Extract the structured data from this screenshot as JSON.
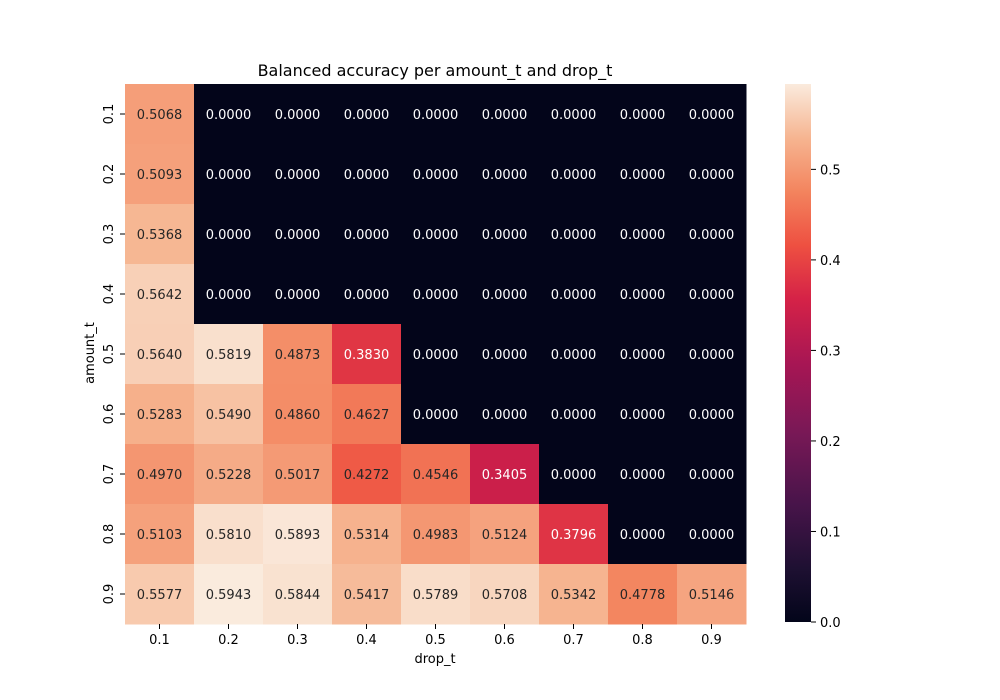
{
  "chart_data": {
    "type": "heatmap",
    "title": "Balanced accuracy per amount_t and drop_t",
    "xlabel": "drop_t",
    "ylabel": "amount_t",
    "x_categories": [
      "0.1",
      "0.2",
      "0.3",
      "0.4",
      "0.5",
      "0.6",
      "0.7",
      "0.8",
      "0.9"
    ],
    "y_categories": [
      "0.1",
      "0.2",
      "0.3",
      "0.4",
      "0.5",
      "0.6",
      "0.7",
      "0.8",
      "0.9"
    ],
    "values": [
      [
        0.5068,
        0.0,
        0.0,
        0.0,
        0.0,
        0.0,
        0.0,
        0.0,
        0.0
      ],
      [
        0.5093,
        0.0,
        0.0,
        0.0,
        0.0,
        0.0,
        0.0,
        0.0,
        0.0
      ],
      [
        0.5368,
        0.0,
        0.0,
        0.0,
        0.0,
        0.0,
        0.0,
        0.0,
        0.0
      ],
      [
        0.5642,
        0.0,
        0.0,
        0.0,
        0.0,
        0.0,
        0.0,
        0.0,
        0.0
      ],
      [
        0.564,
        0.5819,
        0.4873,
        0.383,
        0.0,
        0.0,
        0.0,
        0.0,
        0.0
      ],
      [
        0.5283,
        0.549,
        0.486,
        0.4627,
        0.0,
        0.0,
        0.0,
        0.0,
        0.0
      ],
      [
        0.497,
        0.5228,
        0.5017,
        0.4272,
        0.4546,
        0.3405,
        0.0,
        0.0,
        0.0
      ],
      [
        0.5103,
        0.581,
        0.5893,
        0.5314,
        0.4983,
        0.5124,
        0.3796,
        0.0,
        0.0
      ],
      [
        0.5577,
        0.5943,
        0.5844,
        0.5417,
        0.5789,
        0.5708,
        0.5342,
        0.4778,
        0.5146
      ]
    ],
    "value_format": "4 decimals",
    "colormap": "rocket",
    "vmin": 0.0,
    "vmax": 0.5943,
    "colorbar_ticks": [
      "0.0",
      "0.1",
      "0.2",
      "0.3",
      "0.4",
      "0.5"
    ]
  }
}
